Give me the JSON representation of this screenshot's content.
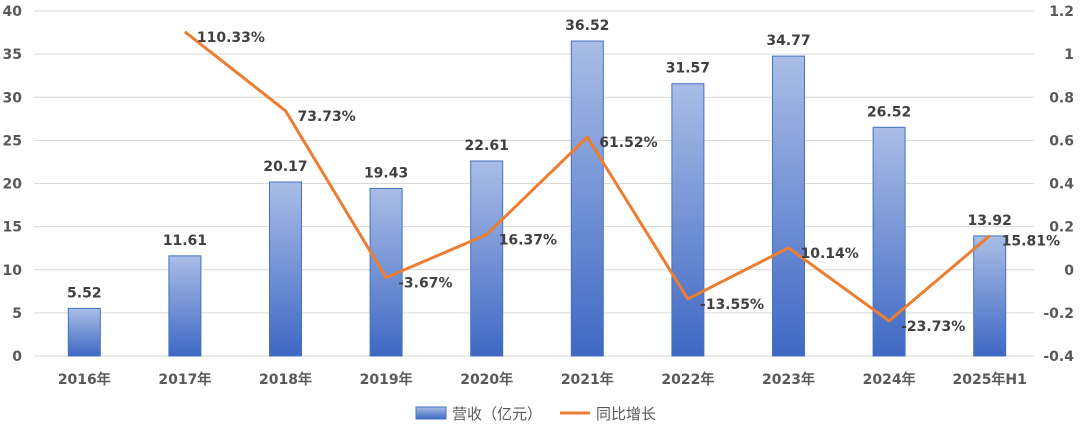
{
  "chart_data": {
    "type": "bar+line",
    "title": "",
    "categories": [
      "2016年",
      "2017年",
      "2018年",
      "2019年",
      "2020年",
      "2021年",
      "2022年",
      "2023年",
      "2024年",
      "2025年H1"
    ],
    "series": [
      {
        "name": "营收（亿元）",
        "type": "bar",
        "axis": "left",
        "values": [
          5.52,
          11.61,
          20.17,
          19.43,
          22.61,
          36.52,
          31.57,
          34.77,
          26.52,
          13.92
        ],
        "labels": [
          "5.52",
          "11.61",
          "20.17",
          "19.43",
          "22.61",
          "36.52",
          "31.57",
          "34.77",
          "26.52",
          "13.92"
        ],
        "color": "#4472c4"
      },
      {
        "name": "同比增长",
        "type": "line",
        "axis": "right",
        "values": [
          null,
          1.1033,
          0.7373,
          -0.0367,
          0.1637,
          0.6152,
          -0.1355,
          0.1014,
          -0.2373,
          0.1581
        ],
        "labels": [
          "",
          "110.33%",
          "73.73%",
          "-3.67%",
          "16.37%",
          "61.52%",
          "-13.55%",
          "10.14%",
          "-23.73%",
          "15.81%"
        ],
        "color": "#ed7d31"
      }
    ],
    "y_left": {
      "range": [
        0,
        40
      ],
      "ticks": [
        "0",
        "5",
        "10",
        "15",
        "20",
        "25",
        "30",
        "35",
        "40"
      ]
    },
    "y_right": {
      "range": [
        -0.4,
        1.2
      ],
      "ticks": [
        "-0.4",
        "-0.2",
        "0",
        "0.2",
        "0.4",
        "0.6",
        "0.8",
        "1",
        "1.2"
      ]
    },
    "grid": true,
    "legend": "bottom"
  }
}
